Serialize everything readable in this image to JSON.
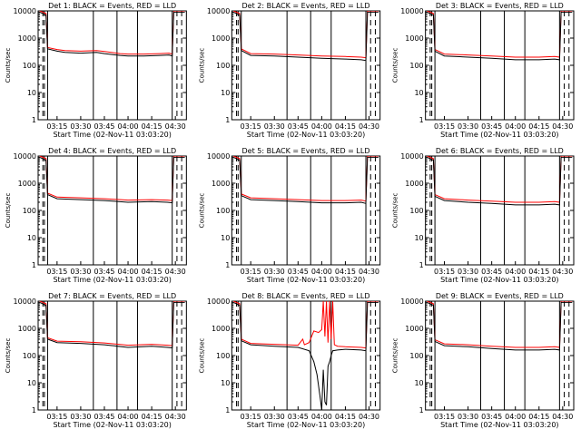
{
  "colors": {
    "events": "#000000",
    "lld": "#ff0000",
    "background": "#ffffff",
    "axis": "#000000"
  },
  "chart_data": [
    {
      "type": "line",
      "title": "Det 1: BLACK = Events, RED = LLD",
      "xlabel": "Start Time (02-Nov-11 03:03:20)",
      "ylabel": "Counts/sec",
      "yscale": "log",
      "ylim": [
        1,
        10000
      ],
      "xlim": [
        "03:03",
        "04:37"
      ],
      "xticks": [
        "03:15",
        "03:30",
        "03:45",
        "04:00",
        "04:15",
        "04:30"
      ],
      "yticks": [
        "1",
        "10",
        "100",
        "1000",
        "10000"
      ],
      "grid": false,
      "series": [
        {
          "name": "Events",
          "color": "#000000",
          "x": [
            "03:04",
            "03:08",
            "03:09",
            "03:15",
            "03:20",
            "03:30",
            "03:40",
            "03:45",
            "03:55",
            "04:00",
            "04:10",
            "04:20",
            "04:26",
            "04:28",
            "04:29",
            "04:30",
            "04:36"
          ],
          "y": [
            9000,
            7000,
            400,
            330,
            300,
            280,
            300,
            270,
            230,
            220,
            220,
            230,
            240,
            220,
            9000,
            9000,
            9000
          ]
        },
        {
          "name": "LLD",
          "color": "#ff0000",
          "x": [
            "03:04",
            "03:08",
            "03:09",
            "03:15",
            "03:20",
            "03:30",
            "03:40",
            "03:45",
            "03:55",
            "04:00",
            "04:10",
            "04:20",
            "04:26",
            "04:28",
            "04:29",
            "04:30",
            "04:36"
          ],
          "y": [
            10000,
            8000,
            450,
            380,
            350,
            330,
            350,
            320,
            270,
            260,
            260,
            270,
            280,
            260,
            10000,
            10000,
            10000
          ]
        }
      ]
    },
    {
      "type": "line",
      "title": "Det 2: BLACK = Events, RED = LLD",
      "xlabel": "Start Time (02-Nov-11 03:03:20)",
      "ylabel": "Counts/sec",
      "yscale": "log",
      "ylim": [
        1,
        10000
      ],
      "xlim": [
        "03:03",
        "04:37"
      ],
      "xticks": [
        "03:15",
        "03:30",
        "03:45",
        "04:00",
        "04:15",
        "04:30"
      ],
      "yticks": [
        "1",
        "10",
        "100",
        "1000",
        "10000"
      ],
      "grid": false,
      "series": [
        {
          "name": "Events",
          "color": "#000000",
          "x": [
            "03:04",
            "03:08",
            "03:09",
            "03:15",
            "03:30",
            "03:45",
            "04:00",
            "04:15",
            "04:25",
            "04:28",
            "04:29",
            "04:36"
          ],
          "y": [
            9000,
            7000,
            350,
            230,
            220,
            200,
            180,
            170,
            160,
            150,
            9000,
            9000
          ]
        },
        {
          "name": "LLD",
          "color": "#ff0000",
          "x": [
            "03:04",
            "03:08",
            "03:09",
            "03:15",
            "03:30",
            "03:45",
            "04:00",
            "04:15",
            "04:25",
            "04:28",
            "04:29",
            "04:36"
          ],
          "y": [
            10000,
            8000,
            400,
            270,
            260,
            240,
            220,
            210,
            200,
            190,
            10000,
            10000
          ]
        }
      ]
    },
    {
      "type": "line",
      "title": "Det 3: BLACK = Events, RED = LLD",
      "xlabel": "Start Time (02-Nov-11 03:03:20)",
      "ylabel": "Counts/sec",
      "yscale": "log",
      "ylim": [
        1,
        10000
      ],
      "xlim": [
        "03:03",
        "04:37"
      ],
      "xticks": [
        "03:15",
        "03:30",
        "03:45",
        "04:00",
        "04:15",
        "04:30"
      ],
      "yticks": [
        "1",
        "10",
        "100",
        "1000",
        "10000"
      ],
      "grid": false,
      "series": [
        {
          "name": "Events",
          "color": "#000000",
          "x": [
            "03:04",
            "03:08",
            "03:09",
            "03:15",
            "03:30",
            "03:45",
            "04:00",
            "04:15",
            "04:25",
            "04:28",
            "04:29",
            "04:36"
          ],
          "y": [
            9000,
            7000,
            330,
            220,
            200,
            180,
            160,
            160,
            170,
            160,
            9000,
            9000
          ]
        },
        {
          "name": "LLD",
          "color": "#ff0000",
          "x": [
            "03:04",
            "03:08",
            "03:09",
            "03:15",
            "03:30",
            "03:45",
            "04:00",
            "04:15",
            "04:25",
            "04:28",
            "04:29",
            "04:36"
          ],
          "y": [
            10000,
            8000,
            380,
            260,
            240,
            220,
            200,
            200,
            210,
            200,
            10000,
            10000
          ]
        }
      ]
    },
    {
      "type": "line",
      "title": "Det 4: BLACK = Events, RED = LLD",
      "xlabel": "Start Time (02-Nov-11 03:03:20)",
      "ylabel": "Counts/sec",
      "yscale": "log",
      "ylim": [
        1,
        10000
      ],
      "xlim": [
        "03:03",
        "04:37"
      ],
      "xticks": [
        "03:15",
        "03:30",
        "03:45",
        "04:00",
        "04:15",
        "04:30"
      ],
      "yticks": [
        "1",
        "10",
        "100",
        "1000",
        "10000"
      ],
      "grid": false,
      "series": [
        {
          "name": "Events",
          "color": "#000000",
          "x": [
            "03:04",
            "03:08",
            "03:09",
            "03:15",
            "03:30",
            "03:45",
            "04:00",
            "04:15",
            "04:25",
            "04:28",
            "04:29",
            "04:36"
          ],
          "y": [
            9000,
            7000,
            380,
            270,
            250,
            230,
            200,
            210,
            200,
            190,
            9000,
            9000
          ]
        },
        {
          "name": "LLD",
          "color": "#ff0000",
          "x": [
            "03:04",
            "03:08",
            "03:09",
            "03:15",
            "03:30",
            "03:45",
            "04:00",
            "04:15",
            "04:25",
            "04:28",
            "04:29",
            "04:36"
          ],
          "y": [
            10000,
            8000,
            430,
            310,
            290,
            270,
            240,
            250,
            240,
            230,
            10000,
            10000
          ]
        }
      ]
    },
    {
      "type": "line",
      "title": "Det 5: BLACK = Events, RED = LLD",
      "xlabel": "Start Time (02-Nov-11 03:03:20)",
      "ylabel": "Counts/sec",
      "yscale": "log",
      "ylim": [
        1,
        10000
      ],
      "xlim": [
        "03:03",
        "04:37"
      ],
      "xticks": [
        "03:15",
        "03:30",
        "03:45",
        "04:00",
        "04:15",
        "04:30"
      ],
      "yticks": [
        "1",
        "10",
        "100",
        "1000",
        "10000"
      ],
      "grid": false,
      "series": [
        {
          "name": "Events",
          "color": "#000000",
          "x": [
            "03:04",
            "03:08",
            "03:09",
            "03:15",
            "03:30",
            "03:45",
            "04:00",
            "04:15",
            "04:25",
            "04:28",
            "04:29",
            "04:36"
          ],
          "y": [
            9000,
            7000,
            350,
            250,
            230,
            210,
            190,
            190,
            200,
            180,
            9000,
            9000
          ]
        },
        {
          "name": "LLD",
          "color": "#ff0000",
          "x": [
            "03:04",
            "03:08",
            "03:09",
            "03:15",
            "03:30",
            "03:45",
            "04:00",
            "04:15",
            "04:25",
            "04:28",
            "04:29",
            "04:36"
          ],
          "y": [
            10000,
            8000,
            400,
            290,
            270,
            250,
            230,
            230,
            240,
            220,
            10000,
            10000
          ]
        }
      ]
    },
    {
      "type": "line",
      "title": "Det 6: BLACK = Events, RED = LLD",
      "xlabel": "Start Time (02-Nov-11 03:03:20)",
      "ylabel": "Counts/sec",
      "yscale": "log",
      "ylim": [
        1,
        10000
      ],
      "xlim": [
        "03:03",
        "04:37"
      ],
      "xticks": [
        "03:15",
        "03:30",
        "03:45",
        "04:00",
        "04:15",
        "04:30"
      ],
      "yticks": [
        "1",
        "10",
        "100",
        "1000",
        "10000"
      ],
      "grid": false,
      "series": [
        {
          "name": "Events",
          "color": "#000000",
          "x": [
            "03:04",
            "03:08",
            "03:09",
            "03:15",
            "03:30",
            "03:45",
            "04:00",
            "04:15",
            "04:25",
            "04:28",
            "04:29",
            "04:36"
          ],
          "y": [
            9000,
            7000,
            330,
            230,
            200,
            180,
            160,
            160,
            170,
            160,
            9000,
            9000
          ]
        },
        {
          "name": "LLD",
          "color": "#ff0000",
          "x": [
            "03:04",
            "03:08",
            "03:09",
            "03:15",
            "03:30",
            "03:45",
            "04:00",
            "04:15",
            "04:25",
            "04:28",
            "04:29",
            "04:36"
          ],
          "y": [
            10000,
            8000,
            380,
            270,
            240,
            220,
            200,
            200,
            210,
            200,
            10000,
            10000
          ]
        }
      ]
    },
    {
      "type": "line",
      "title": "Det 7: BLACK = Events, RED = LLD",
      "xlabel": "Start Time (02-Nov-11 03:03:20)",
      "ylabel": "Counts/sec",
      "yscale": "log",
      "ylim": [
        1,
        10000
      ],
      "xlim": [
        "03:03",
        "04:37"
      ],
      "xticks": [
        "03:15",
        "03:30",
        "03:45",
        "04:00",
        "04:15",
        "04:30"
      ],
      "yticks": [
        "1",
        "10",
        "100",
        "1000",
        "10000"
      ],
      "grid": false,
      "series": [
        {
          "name": "Events",
          "color": "#000000",
          "x": [
            "03:04",
            "03:08",
            "03:09",
            "03:15",
            "03:30",
            "03:45",
            "04:00",
            "04:15",
            "04:25",
            "04:28",
            "04:29",
            "04:36"
          ],
          "y": [
            9000,
            7000,
            400,
            300,
            280,
            250,
            200,
            220,
            200,
            190,
            9000,
            9000
          ]
        },
        {
          "name": "LLD",
          "color": "#ff0000",
          "x": [
            "03:04",
            "03:08",
            "03:09",
            "03:15",
            "03:30",
            "03:45",
            "04:00",
            "04:15",
            "04:25",
            "04:28",
            "04:29",
            "04:36"
          ],
          "y": [
            10000,
            8000,
            450,
            340,
            320,
            290,
            240,
            260,
            240,
            230,
            10000,
            10000
          ]
        }
      ]
    },
    {
      "type": "line",
      "title": "Det 8: BLACK = Events, RED = LLD",
      "xlabel": "Start Time (02-Nov-11 03:03:20)",
      "ylabel": "Counts/sec",
      "yscale": "log",
      "ylim": [
        1,
        10000
      ],
      "xlim": [
        "03:03",
        "04:37"
      ],
      "xticks": [
        "03:15",
        "03:30",
        "03:45",
        "04:00",
        "04:15",
        "04:30"
      ],
      "yticks": [
        "1",
        "10",
        "100",
        "1000",
        "10000"
      ],
      "grid": false,
      "series": [
        {
          "name": "Events",
          "color": "#000000",
          "x": [
            "03:04",
            "03:08",
            "03:09",
            "03:15",
            "03:30",
            "03:45",
            "03:52",
            "03:55",
            "03:57",
            "03:59",
            "04:00",
            "04:01",
            "04:02",
            "04:03",
            "04:04",
            "04:05",
            "04:06",
            "04:07",
            "04:10",
            "04:15",
            "04:25",
            "04:28",
            "04:29",
            "04:36"
          ],
          "y": [
            9000,
            7000,
            350,
            250,
            220,
            200,
            150,
            60,
            20,
            3,
            1,
            30,
            2,
            1.5,
            40,
            60,
            100,
            150,
            160,
            170,
            160,
            150,
            9000,
            9000
          ]
        },
        {
          "name": "LLD",
          "color": "#ff0000",
          "x": [
            "03:04",
            "03:08",
            "03:09",
            "03:15",
            "03:30",
            "03:45",
            "03:48",
            "03:49",
            "03:52",
            "03:55",
            "03:58",
            "04:00",
            "04:01",
            "04:02",
            "04:03",
            "04:04",
            "04:05",
            "04:06",
            "04:07",
            "04:08",
            "04:10",
            "04:15",
            "04:25",
            "04:28",
            "04:29",
            "04:36"
          ],
          "y": [
            10000,
            8000,
            400,
            280,
            260,
            240,
            400,
            250,
            300,
            800,
            700,
            900,
            10000,
            500,
            10000,
            300,
            10000,
            400,
            10000,
            250,
            220,
            210,
            200,
            190,
            10000,
            10000
          ]
        }
      ]
    },
    {
      "type": "line",
      "title": "Det 9: BLACK = Events, RED = LLD",
      "xlabel": "Start Time (02-Nov-11 03:03:20)",
      "ylabel": "Counts/sec",
      "yscale": "log",
      "ylim": [
        1,
        10000
      ],
      "xlim": [
        "03:03",
        "04:37"
      ],
      "xticks": [
        "03:15",
        "03:30",
        "03:45",
        "04:00",
        "04:15",
        "04:30"
      ],
      "yticks": [
        "1",
        "10",
        "100",
        "1000",
        "10000"
      ],
      "grid": false,
      "series": [
        {
          "name": "Events",
          "color": "#000000",
          "x": [
            "03:04",
            "03:08",
            "03:09",
            "03:15",
            "03:30",
            "03:45",
            "04:00",
            "04:15",
            "04:25",
            "04:28",
            "04:29",
            "04:36"
          ],
          "y": [
            9000,
            7000,
            330,
            230,
            210,
            180,
            160,
            160,
            170,
            160,
            9000,
            9000
          ]
        },
        {
          "name": "LLD",
          "color": "#ff0000",
          "x": [
            "03:04",
            "03:08",
            "03:09",
            "03:15",
            "03:30",
            "03:45",
            "04:00",
            "04:15",
            "04:25",
            "04:28",
            "04:29",
            "04:36"
          ],
          "y": [
            10000,
            8000,
            380,
            270,
            250,
            220,
            200,
            200,
            210,
            200,
            10000,
            10000
          ]
        }
      ]
    }
  ]
}
